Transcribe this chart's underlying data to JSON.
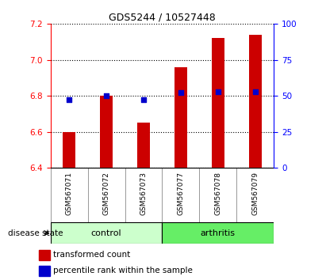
{
  "title": "GDS5244 / 10527448",
  "samples": [
    "GSM567071",
    "GSM567072",
    "GSM567073",
    "GSM567077",
    "GSM567078",
    "GSM567079"
  ],
  "red_values": [
    6.6,
    6.8,
    6.65,
    6.96,
    7.12,
    7.14
  ],
  "blue_values": [
    6.778,
    6.8,
    6.778,
    6.82,
    6.822,
    6.822
  ],
  "ylim_left": [
    6.4,
    7.2
  ],
  "ylim_right": [
    0,
    100
  ],
  "yticks_left": [
    6.4,
    6.6,
    6.8,
    7.0,
    7.2
  ],
  "yticks_right": [
    0,
    25,
    50,
    75,
    100
  ],
  "bar_color": "#cc0000",
  "blue_color": "#0000cc",
  "label_bg": "#c8c8c8",
  "control_color": "#ccffcc",
  "arthritis_color": "#66ee66",
  "bar_width": 0.35,
  "baseline": 6.4,
  "legend_red": "transformed count",
  "legend_blue": "percentile rank within the sample",
  "disease_state_label": "disease state"
}
